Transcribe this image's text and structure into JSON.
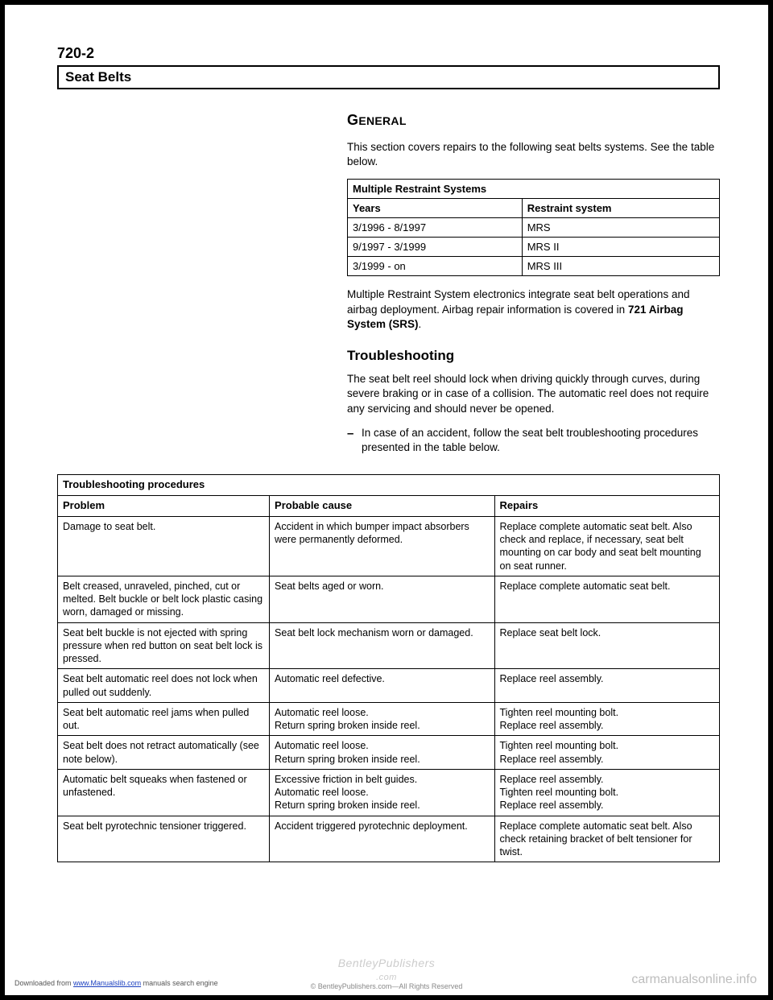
{
  "page_number": "720-2",
  "section_title": "Seat Belts",
  "general_heading": "GENERAL",
  "general_para": "This section covers repairs to the following seat belts systems. See the table below.",
  "systems_table": {
    "title": "Multiple Restraint Systems",
    "headers": [
      "Years",
      "Restraint system"
    ],
    "rows": [
      [
        "3/1996 - 8/1997",
        "MRS"
      ],
      [
        "9/1997 - 3/1999",
        "MRS II"
      ],
      [
        "3/1999 - on",
        "MRS III"
      ]
    ]
  },
  "mrs_para_pre": "Multiple Restraint System electronics integrate seat belt operations and airbag deployment. Airbag repair information is covered in ",
  "mrs_para_bold": "721 Airbag System (SRS)",
  "mrs_para_post": ".",
  "trouble_heading": "Troubleshooting",
  "trouble_para": "The seat belt reel should lock when driving quickly through curves, during severe braking or in case of a collision. The automatic reel does not require any servicing and should never be opened.",
  "dash_item": "In case of an accident, follow the seat belt troubleshooting procedures presented in the table below.",
  "trouble_table": {
    "title": "Troubleshooting procedures",
    "headers": [
      "Problem",
      "Probable cause",
      "Repairs"
    ],
    "rows": [
      [
        "Damage to seat belt.",
        "Accident in which bumper impact absorbers were permanently deformed.",
        "Replace complete automatic seat belt. Also check and replace, if necessary, seat belt mounting on car body and seat belt mounting on seat runner."
      ],
      [
        "Belt creased, unraveled, pinched, cut or melted. Belt buckle or belt lock plastic casing worn, damaged or missing.",
        "Seat belts aged or worn.",
        "Replace complete automatic seat belt."
      ],
      [
        "Seat belt buckle is not ejected with spring pressure when red button on seat belt lock is pressed.",
        "Seat belt lock mechanism worn or damaged.",
        "Replace seat belt lock."
      ],
      [
        "Seat belt automatic reel does not lock when pulled out suddenly.",
        "Automatic reel defective.",
        "Replace reel assembly."
      ],
      [
        "Seat belt automatic reel jams when pulled out.",
        "Automatic reel loose.\nReturn spring broken inside reel.",
        "Tighten reel mounting bolt.\nReplace reel assembly."
      ],
      [
        "Seat belt does not retract automatically (see note below).",
        "Automatic reel loose.\nReturn spring broken inside reel.",
        "Tighten reel mounting bolt.\nReplace reel assembly."
      ],
      [
        "Automatic belt squeaks when fastened or unfastened.",
        "Excessive friction in belt guides.\nAutomatic reel loose.\nReturn spring broken inside reel.",
        "Replace reel assembly.\nTighten reel mounting bolt.\nReplace reel assembly."
      ],
      [
        "Seat belt pyrotechnic tensioner triggered.",
        "Accident triggered pyrotechnic deployment.",
        "Replace complete automatic seat belt. Also check retaining bracket of belt tensioner for twist."
      ]
    ]
  },
  "footer": {
    "bentley": "BentleyPublishers",
    "com": ".com",
    "rights": "© BentleyPublishers.com—All Rights Reserved"
  },
  "watermark": "carmanualsonline.info",
  "download_pre": "Downloaded from ",
  "download_link": "www.Manualslib.com",
  "download_post": " manuals search engine"
}
